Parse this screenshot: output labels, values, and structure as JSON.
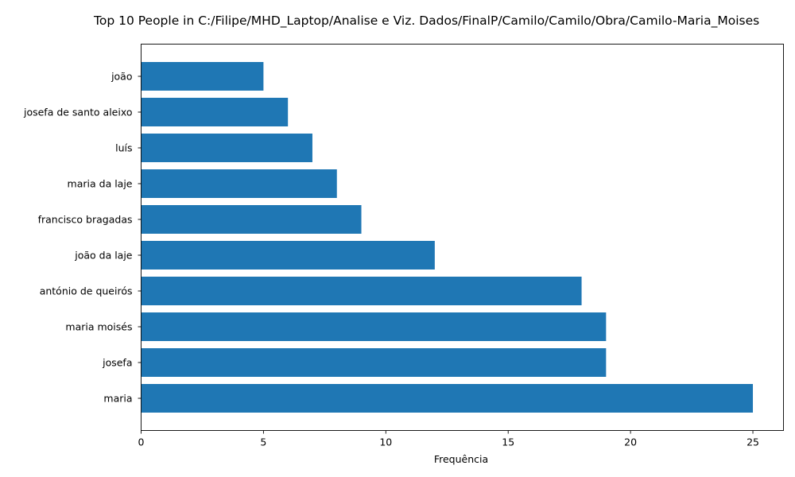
{
  "chart_data": {
    "type": "bar",
    "orientation": "horizontal",
    "title": "Top 10 People in C:/Filipe/MHD_Laptop/Analise e Viz. Dados/FinalP/Camilo/Camilo/Obra/Camilo-Maria_Moises",
    "xlabel": "Frequência",
    "ylabel": "",
    "categories": [
      "maria",
      "josefa",
      "maria moisés",
      "antónio de queirós",
      "joão da laje",
      "francisco bragadas",
      "maria da laje",
      "luís",
      "josefa de santo aleixo",
      "joão"
    ],
    "values": [
      25,
      19,
      19,
      18,
      12,
      9,
      8,
      7,
      6,
      5
    ],
    "xlim": [
      0,
      26.25
    ],
    "xticks": [
      0,
      5,
      10,
      15,
      20,
      25
    ],
    "bar_color": "#1f77b4",
    "grid": false,
    "legend": "none"
  }
}
